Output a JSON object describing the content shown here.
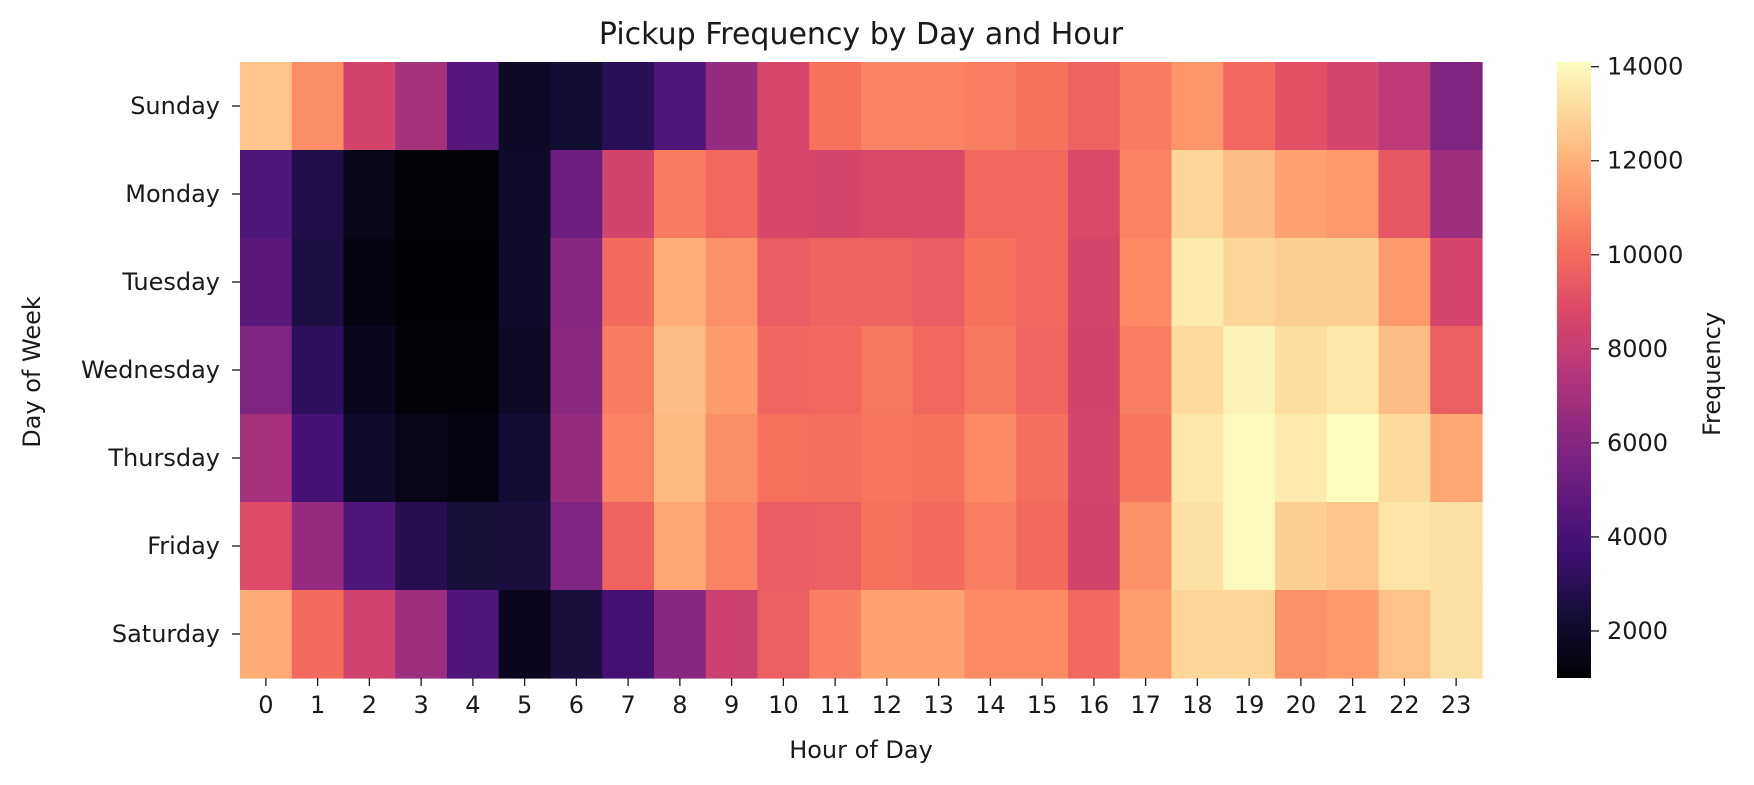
{
  "chart_data": {
    "type": "heatmap",
    "title": "Pickup Frequency by Day and Hour",
    "xlabel": "Hour of Day",
    "ylabel": "Day of Week",
    "x": [
      "0",
      "1",
      "2",
      "3",
      "4",
      "5",
      "6",
      "7",
      "8",
      "9",
      "10",
      "11",
      "12",
      "13",
      "14",
      "15",
      "16",
      "17",
      "18",
      "19",
      "20",
      "21",
      "22",
      "23"
    ],
    "y": [
      "Sunday",
      "Monday",
      "Tuesday",
      "Wednesday",
      "Thursday",
      "Friday",
      "Saturday"
    ],
    "values": [
      [
        12500,
        11000,
        8500,
        7000,
        4500,
        1900,
        2200,
        3000,
        4300,
        6500,
        8700,
        10200,
        10700,
        10700,
        10600,
        10200,
        9700,
        10500,
        11200,
        9900,
        9100,
        8600,
        7800,
        5800
      ],
      [
        4300,
        2700,
        1500,
        1100,
        1100,
        2000,
        5200,
        8500,
        10500,
        9900,
        8700,
        8600,
        8800,
        8800,
        9900,
        9900,
        8800,
        10700,
        13000,
        12300,
        11600,
        11300,
        9300,
        6800
      ],
      [
        4600,
        2600,
        1300,
        1000,
        1000,
        2000,
        6100,
        10000,
        11900,
        11100,
        9500,
        9700,
        9700,
        9500,
        10200,
        9900,
        8600,
        10900,
        13600,
        13000,
        12800,
        12800,
        11300,
        8600
      ],
      [
        5800,
        3200,
        1700,
        1100,
        1100,
        1900,
        6200,
        10500,
        12300,
        11400,
        9800,
        9900,
        10400,
        9900,
        10400,
        9800,
        8500,
        10600,
        13100,
        13800,
        13200,
        13500,
        12300,
        9600
      ],
      [
        7000,
        4000,
        2000,
        1500,
        1300,
        2200,
        6500,
        10700,
        12200,
        11000,
        10200,
        10100,
        10300,
        10200,
        10900,
        10100,
        8600,
        10300,
        13500,
        14000,
        13600,
        14100,
        13100,
        11700
      ],
      [
        8900,
        6500,
        4300,
        2900,
        2400,
        2500,
        5800,
        9700,
        11700,
        10700,
        9500,
        9600,
        10200,
        10000,
        10600,
        10000,
        8500,
        11100,
        13300,
        14000,
        12800,
        12500,
        13400,
        13300
      ],
      [
        11800,
        10000,
        8400,
        6700,
        4300,
        1700,
        2500,
        3900,
        6100,
        8200,
        9600,
        10600,
        11600,
        11600,
        10900,
        10900,
        9900,
        11500,
        13000,
        13000,
        11100,
        11300,
        12400,
        13300
      ]
    ],
    "vmin": 1000,
    "vmax": 14100,
    "colormap": "magma",
    "colorbar": {
      "label": "Frequency",
      "ticks": [
        2000,
        4000,
        6000,
        8000,
        10000,
        12000,
        14000
      ],
      "placement": "right"
    },
    "grid": false
  }
}
